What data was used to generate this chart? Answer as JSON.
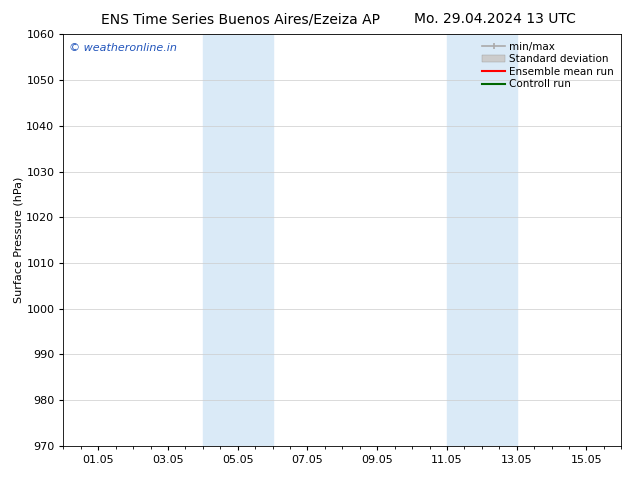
{
  "title_left": "ENS Time Series Buenos Aires/Ezeiza AP",
  "title_right": "Mo. 29.04.2024 13 UTC",
  "ylabel": "Surface Pressure (hPa)",
  "ylim": [
    970,
    1060
  ],
  "yticks": [
    970,
    980,
    990,
    1000,
    1010,
    1020,
    1030,
    1040,
    1050,
    1060
  ],
  "xtick_labels": [
    "01.05",
    "03.05",
    "05.05",
    "07.05",
    "09.05",
    "11.05",
    "13.05",
    "15.05"
  ],
  "xtick_positions": [
    1,
    3,
    5,
    7,
    9,
    11,
    13,
    15
  ],
  "xlim": [
    0,
    16
  ],
  "shaded_bands": [
    {
      "x_start": 4.0,
      "x_end": 6.0
    },
    {
      "x_start": 11.0,
      "x_end": 13.0
    }
  ],
  "shaded_color": "#daeaf7",
  "watermark_text": "© weatheronline.in",
  "watermark_color": "#2255bb",
  "bg_color": "#ffffff",
  "grid_color": "#cccccc",
  "title_fontsize": 10,
  "ylabel_fontsize": 8,
  "tick_fontsize": 8,
  "watermark_fontsize": 8,
  "legend_fontsize": 7.5
}
